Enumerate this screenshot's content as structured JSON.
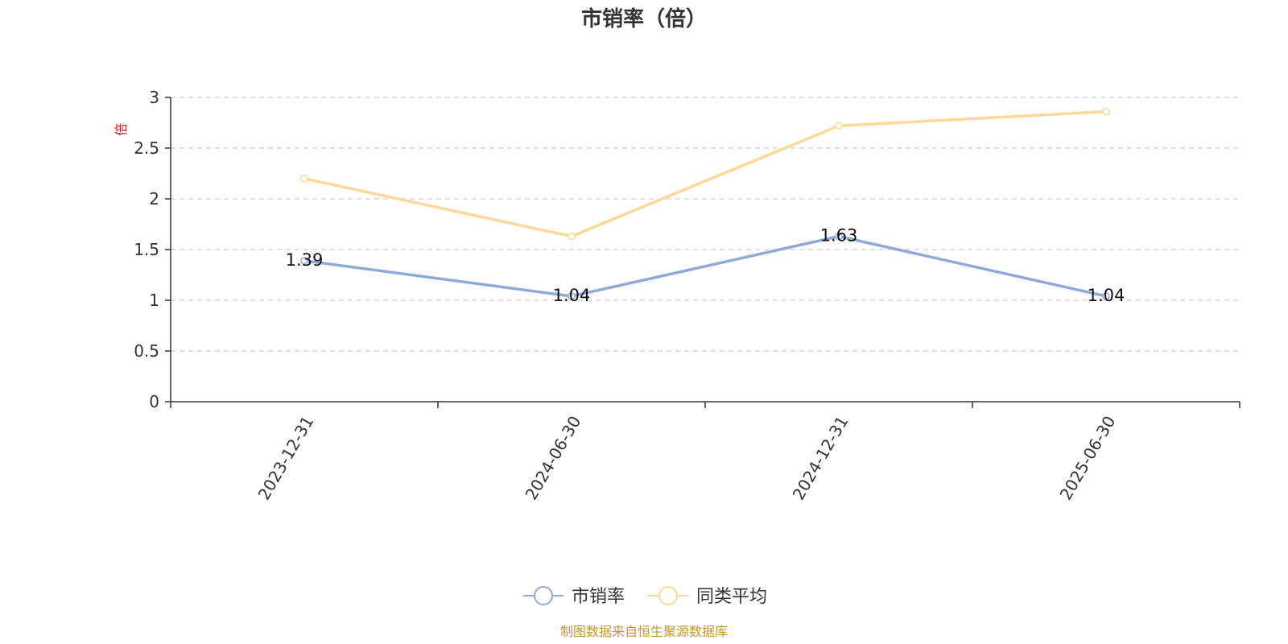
{
  "chart_data": {
    "type": "line",
    "title": "市销率（倍）",
    "ylabel": "倍",
    "categories": [
      "2023-12-31",
      "2024-06-30",
      "2024-12-31",
      "2025-06-30"
    ],
    "ylim": [
      0,
      3
    ],
    "yticks": [
      "0",
      "0.5",
      "1",
      "1.5",
      "2",
      "2.5",
      "3"
    ],
    "grid": true,
    "legend_position": "bottom",
    "series": [
      {
        "name": "市销率",
        "values": [
          1.39,
          1.04,
          1.63,
          1.04
        ],
        "labels": [
          "1.39",
          "1.04",
          "1.63",
          "1.04"
        ],
        "color": "#8eaad8"
      },
      {
        "name": "同类平均",
        "values": [
          2.2,
          1.63,
          2.72,
          2.86
        ],
        "color": "#fcd997"
      }
    ]
  },
  "source": "制图数据来自恒生聚源数据库",
  "colors": {
    "source_text": "#c8962a",
    "unit_label": "#e01010",
    "axis": "#333333",
    "grid": "#cccccc"
  }
}
